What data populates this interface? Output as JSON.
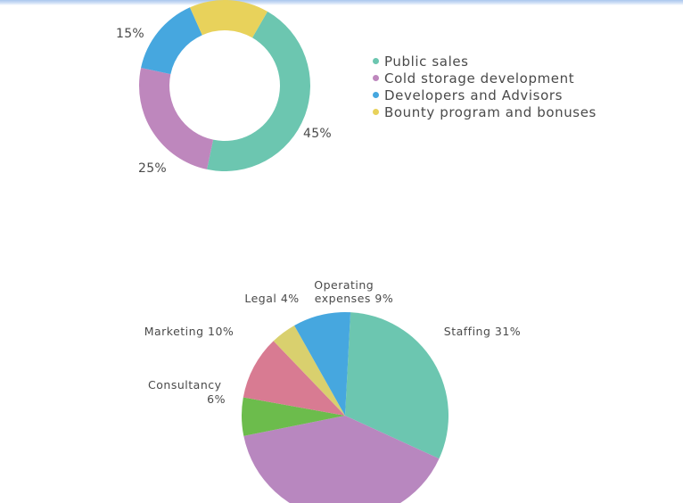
{
  "chart_data": [
    {
      "type": "pie",
      "variant": "donut",
      "slices": [
        {
          "label": "Public sales",
          "value": 45,
          "value_label": "45%",
          "color": "#6cc6b0"
        },
        {
          "label": "Cold storage development",
          "value": 25,
          "value_label": "25%",
          "color": "#be87bd"
        },
        {
          "label": "Developers and Advisors",
          "value": 15,
          "value_label": "",
          "color": "#46a7df"
        },
        {
          "label": "Bounty program and bonuses",
          "value": 15,
          "value_label": "15%",
          "color": "#e8d25b"
        }
      ],
      "legend": "right"
    },
    {
      "type": "pie",
      "slices": [
        {
          "label": "Staffing",
          "value": 31,
          "value_label": "31%",
          "color": "#6cc6b0"
        },
        {
          "label": "",
          "value": 40,
          "value_label": "",
          "color": "#b887bf"
        },
        {
          "label": "Consultancy",
          "value": 6,
          "value_label": "6%",
          "color": "#6cbc4c"
        },
        {
          "label": "Marketing",
          "value": 10,
          "value_label": "10%",
          "color": "#d87b92"
        },
        {
          "label": "Legal",
          "value": 4,
          "value_label": "4%",
          "color": "#d9d06e"
        },
        {
          "label": "Operating expenses",
          "value": 9,
          "value_label": "9%",
          "color": "#46a7df"
        }
      ],
      "legend": "none"
    }
  ]
}
